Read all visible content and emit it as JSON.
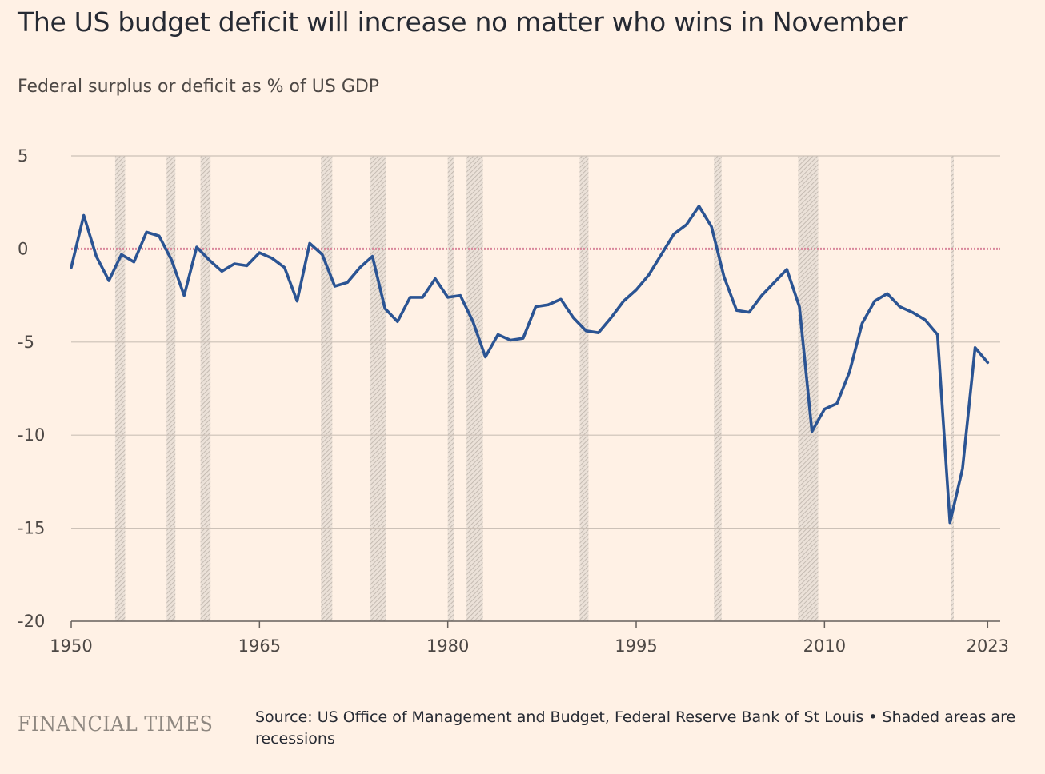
{
  "title": "The US budget deficit will increase no matter who wins in November",
  "subtitle": "Federal surplus or deficit as % of US GDP",
  "brand": "FINANCIAL TIMES",
  "source": "Source: US Office of Management and Budget, Federal Reserve Bank of St Louis • Shaded areas are recessions",
  "colors": {
    "background": "#FFF1E5",
    "line": "#2B5493",
    "zero_line": "#D9879B",
    "grid": "#CCC1B7",
    "recession": "#9E9791"
  },
  "chart_data": {
    "type": "line",
    "title": "The US budget deficit will increase no matter who wins in November",
    "subtitle": "Federal surplus or deficit as % of US GDP",
    "xlim": [
      1950,
      2024
    ],
    "ylim": [
      -20,
      5
    ],
    "x_ticks": [
      1950,
      1965,
      1980,
      1995,
      2010,
      2023
    ],
    "y_ticks": [
      5,
      0,
      -5,
      -10,
      -15,
      -20
    ],
    "grid": "horizontal",
    "zero_line": true,
    "series": [
      {
        "name": "",
        "x": [
          1950,
          1951,
          1952,
          1953,
          1954,
          1955,
          1956,
          1957,
          1958,
          1959,
          1960,
          1961,
          1962,
          1963,
          1964,
          1965,
          1966,
          1967,
          1968,
          1969,
          1970,
          1971,
          1972,
          1973,
          1974,
          1975,
          1976,
          1977,
          1978,
          1979,
          1980,
          1981,
          1982,
          1983,
          1984,
          1985,
          1986,
          1987,
          1988,
          1989,
          1990,
          1991,
          1992,
          1993,
          1994,
          1995,
          1996,
          1997,
          1998,
          1999,
          2000,
          2001,
          2002,
          2003,
          2004,
          2005,
          2006,
          2007,
          2008,
          2009,
          2010,
          2011,
          2012,
          2013,
          2014,
          2015,
          2016,
          2017,
          2018,
          2019,
          2020,
          2021,
          2022,
          2023
        ],
        "values": [
          -1.0,
          1.8,
          -0.4,
          -1.7,
          -0.3,
          -0.7,
          0.9,
          0.7,
          -0.6,
          -2.5,
          0.1,
          -0.6,
          -1.2,
          -0.8,
          -0.9,
          -0.2,
          -0.5,
          -1.0,
          -2.8,
          0.3,
          -0.3,
          -2.0,
          -1.8,
          -1.0,
          -0.4,
          -3.2,
          -3.9,
          -2.6,
          -2.6,
          -1.6,
          -2.6,
          -2.5,
          -3.9,
          -5.8,
          -4.6,
          -4.9,
          -4.8,
          -3.1,
          -3.0,
          -2.7,
          -3.7,
          -4.4,
          -4.5,
          -3.7,
          -2.8,
          -2.2,
          -1.4,
          -0.3,
          0.8,
          1.3,
          2.3,
          1.2,
          -1.5,
          -3.3,
          -3.4,
          -2.5,
          -1.8,
          -1.1,
          -3.1,
          -9.8,
          -8.6,
          -8.3,
          -6.6,
          -4.0,
          -2.8,
          -2.4,
          -3.1,
          -3.4,
          -3.8,
          -4.6,
          -14.7,
          -11.8,
          -5.3,
          -6.1
        ]
      }
    ],
    "recessions": [
      [
        1953.5,
        1954.3
      ],
      [
        1957.6,
        1958.3
      ],
      [
        1960.3,
        1961.1
      ],
      [
        1969.9,
        1970.8
      ],
      [
        1973.8,
        1975.1
      ],
      [
        1980.0,
        1980.5
      ],
      [
        1981.5,
        1982.8
      ],
      [
        1990.5,
        1991.2
      ],
      [
        2001.2,
        2001.8
      ],
      [
        2007.9,
        2009.5
      ],
      [
        2020.1,
        2020.3
      ]
    ]
  }
}
